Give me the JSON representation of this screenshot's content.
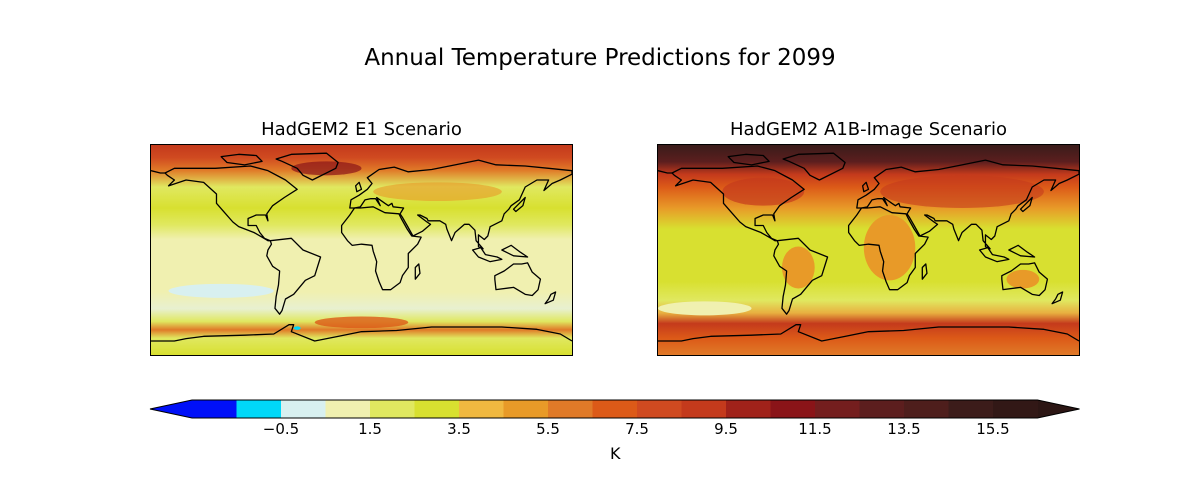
{
  "figure": {
    "title": "Annual Temperature Predictions for 2099",
    "panels": [
      {
        "title": "HadGEM2 E1 Scenario"
      },
      {
        "title": "HadGEM2 A1B-Image Scenario"
      }
    ]
  },
  "colorbar": {
    "label": "K",
    "levels_start": -2.5,
    "level_step": 1,
    "extend": "both",
    "colors": [
      "#0010f8",
      "#00d8f8",
      "#d8f0f0",
      "#f0f0b0",
      "#e0e860",
      "#d8e030",
      "#f0b840",
      "#e89a28",
      "#e07a28",
      "#dc5a18",
      "#d04a20",
      "#c43a1c",
      "#a0221a",
      "#8a1418",
      "#741e1e",
      "#5c1e1e",
      "#4e1e1c",
      "#3c1c1a",
      "#321816"
    ],
    "under_color": "#0010f8",
    "over_color": "#2c1614",
    "ticks": [
      "−0.5",
      "1.5",
      "3.5",
      "5.5",
      "7.5",
      "9.5",
      "11.5",
      "13.5",
      "15.5"
    ],
    "tick_values": [
      -0.5,
      1.5,
      3.5,
      5.5,
      7.5,
      9.5,
      11.5,
      13.5,
      15.5
    ]
  }
}
